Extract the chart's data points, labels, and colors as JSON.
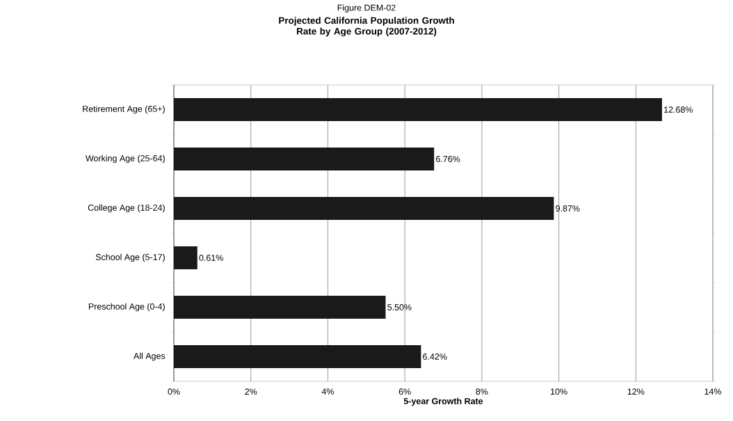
{
  "chart_data": {
    "type": "bar",
    "orientation": "horizontal",
    "subtitle": "Figure DEM-02",
    "title": "Projected California Population Growth Rate by Age Group (2007-2012)",
    "xlabel": "5-year Growth Rate",
    "categories": [
      "Retirement Age (65+)",
      "Working Age (25-64)",
      "College Age (18-24)",
      "School Age (5-17)",
      "Preschool Age (0-4)",
      "All Ages"
    ],
    "values": [
      12.68,
      6.76,
      9.87,
      0.61,
      5.5,
      6.42
    ],
    "value_labels": [
      "12.68%",
      "6.76%",
      "9.87%",
      "0.61%",
      "5.50%",
      "6.42%"
    ],
    "color": "#1a1a1a",
    "xlim": [
      0,
      14
    ],
    "xticks": [
      {
        "value": 0,
        "label": "0%"
      },
      {
        "value": 2,
        "label": "2%"
      },
      {
        "value": 4,
        "label": "4%"
      },
      {
        "value": 6,
        "label": "6%"
      },
      {
        "value": 8,
        "label": "8%"
      },
      {
        "value": 10,
        "label": "10%"
      },
      {
        "value": 12,
        "label": "12%"
      },
      {
        "value": 14,
        "label": "14%"
      }
    ],
    "grid": "x"
  }
}
